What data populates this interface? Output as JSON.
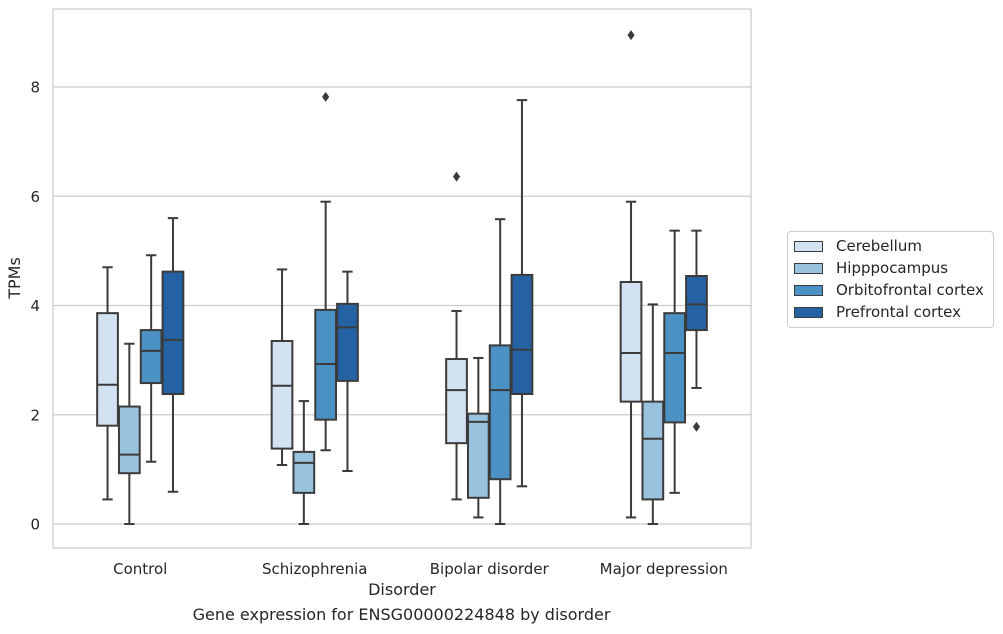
{
  "caption": "Gene expression for ENSG00000224848 by disorder",
  "colors": {
    "Cerebellum": "#d3e2f2",
    "Hipppocampus": "#98c2dd",
    "Orbitofrontal cortex": "#4b91c3",
    "Prefrontal cortex": "#2462a3",
    "grid": "#cccccc",
    "box_edge": "#3b3b3b"
  },
  "chart_data": {
    "type": "box",
    "xlabel": "Disorder",
    "ylabel": "TPMs",
    "ylim": [
      -0.45,
      9.5
    ],
    "yticks": [
      0,
      2,
      4,
      6,
      8
    ],
    "grid": "horizontal",
    "legend_position": "right",
    "categories": [
      "Control",
      "Schizophrenia",
      "Bipolar disorder",
      "Major depression"
    ],
    "series": [
      {
        "name": "Cerebellum",
        "boxes": [
          {
            "whislo": 0.45,
            "q1": 1.8,
            "med": 2.55,
            "q3": 3.86,
            "whishi": 4.7,
            "fliers": []
          },
          {
            "whislo": 1.08,
            "q1": 1.38,
            "med": 2.53,
            "q3": 3.35,
            "whishi": 4.66,
            "fliers": []
          },
          {
            "whislo": 0.45,
            "q1": 1.48,
            "med": 2.45,
            "q3": 3.02,
            "whishi": 3.9,
            "fliers": [
              6.36
            ]
          },
          {
            "whislo": 0.12,
            "q1": 2.24,
            "med": 3.13,
            "q3": 4.43,
            "whishi": 5.9,
            "fliers": [
              8.95
            ]
          }
        ]
      },
      {
        "name": "Hipppocampus",
        "boxes": [
          {
            "whislo": 0.0,
            "q1": 0.93,
            "med": 1.27,
            "q3": 2.15,
            "whishi": 3.3,
            "fliers": []
          },
          {
            "whislo": 0.0,
            "q1": 0.57,
            "med": 1.12,
            "q3": 1.32,
            "whishi": 2.25,
            "fliers": []
          },
          {
            "whislo": 0.12,
            "q1": 0.48,
            "med": 1.87,
            "q3": 2.02,
            "whishi": 3.04,
            "fliers": []
          },
          {
            "whislo": 0.0,
            "q1": 0.45,
            "med": 1.56,
            "q3": 2.24,
            "whishi": 4.02,
            "fliers": []
          }
        ]
      },
      {
        "name": "Orbitofrontal cortex",
        "boxes": [
          {
            "whislo": 1.14,
            "q1": 2.58,
            "med": 3.17,
            "q3": 3.55,
            "whishi": 4.92,
            "fliers": []
          },
          {
            "whislo": 1.35,
            "q1": 1.91,
            "med": 2.93,
            "q3": 3.92,
            "whishi": 5.9,
            "fliers": [
              7.82
            ]
          },
          {
            "whislo": 0.0,
            "q1": 0.82,
            "med": 2.45,
            "q3": 3.27,
            "whishi": 5.58,
            "fliers": []
          },
          {
            "whislo": 0.57,
            "q1": 1.86,
            "med": 3.13,
            "q3": 3.86,
            "whishi": 5.37,
            "fliers": []
          }
        ]
      },
      {
        "name": "Prefrontal cortex",
        "boxes": [
          {
            "whislo": 0.59,
            "q1": 2.38,
            "med": 3.37,
            "q3": 4.62,
            "whishi": 5.6,
            "fliers": []
          },
          {
            "whislo": 0.97,
            "q1": 2.62,
            "med": 3.6,
            "q3": 4.03,
            "whishi": 4.62,
            "fliers": []
          },
          {
            "whislo": 0.69,
            "q1": 2.38,
            "med": 3.19,
            "q3": 4.56,
            "whishi": 7.76,
            "fliers": []
          },
          {
            "whislo": 2.49,
            "q1": 3.55,
            "med": 4.02,
            "q3": 4.54,
            "whishi": 5.37,
            "fliers": [
              1.78
            ]
          }
        ]
      }
    ]
  }
}
